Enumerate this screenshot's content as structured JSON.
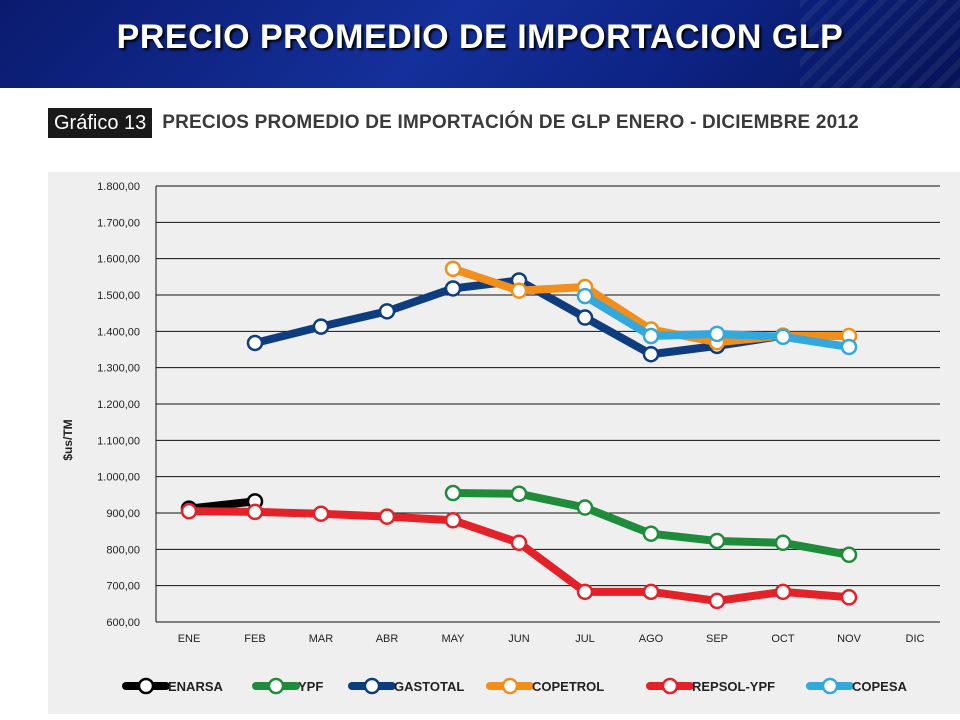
{
  "slide": {
    "title": "PRECIO PROMEDIO DE IMPORTACION GLP",
    "figure_label": "Gráfico 13",
    "figure_title": "PRECIOS PROMEDIO DE IMPORTACIÓN DE GLP ENERO - DICIEMBRE 2012"
  },
  "chart_data": {
    "type": "line",
    "ylabel": "$us/TM",
    "xlabel": "",
    "ylim": [
      600,
      1800
    ],
    "y_ticks": [
      600,
      700,
      800,
      900,
      1000,
      1100,
      1200,
      1300,
      1400,
      1500,
      1600,
      1700,
      1800
    ],
    "y_tick_labels": [
      "600,00",
      "700,00",
      "800,00",
      "900,00",
      "1.000,00",
      "1.100,00",
      "1.200,00",
      "1.300,00",
      "1.400,00",
      "1.500,00",
      "1.600,00",
      "1.700,00",
      "1.800,00"
    ],
    "categories": [
      "ENE",
      "FEB",
      "MAR",
      "ABR",
      "MAY",
      "JUN",
      "JUL",
      "AGO",
      "SEP",
      "OCT",
      "NOV",
      "DIC"
    ],
    "grid": true,
    "legend_position": "bottom",
    "series": [
      {
        "name": "ENARSA",
        "color": "#000000",
        "values": [
          912,
          932,
          null,
          null,
          null,
          null,
          null,
          null,
          null,
          null,
          null,
          null
        ]
      },
      {
        "name": "YPF",
        "color": "#1e8c3a",
        "values": [
          null,
          null,
          null,
          null,
          955,
          953,
          915,
          843,
          823,
          818,
          785,
          null
        ]
      },
      {
        "name": "GASTOTAL",
        "color": "#0d3d7e",
        "values": [
          null,
          1368,
          1413,
          1455,
          1518,
          1540,
          1438,
          1337,
          1360,
          1388,
          null,
          null
        ]
      },
      {
        "name": "COPETROL",
        "color": "#f28e1c",
        "values": [
          null,
          null,
          null,
          null,
          1572,
          1512,
          1522,
          1405,
          1370,
          1388,
          1387,
          null
        ]
      },
      {
        "name": "REPSOL-YPF",
        "color": "#e32128",
        "values": [
          905,
          903,
          898,
          890,
          880,
          818,
          683,
          683,
          658,
          683,
          668,
          null
        ]
      },
      {
        "name": "COPESA",
        "color": "#33a8dc",
        "values": [
          null,
          null,
          null,
          null,
          null,
          null,
          1497,
          1387,
          1393,
          1385,
          1357,
          null
        ]
      }
    ]
  }
}
